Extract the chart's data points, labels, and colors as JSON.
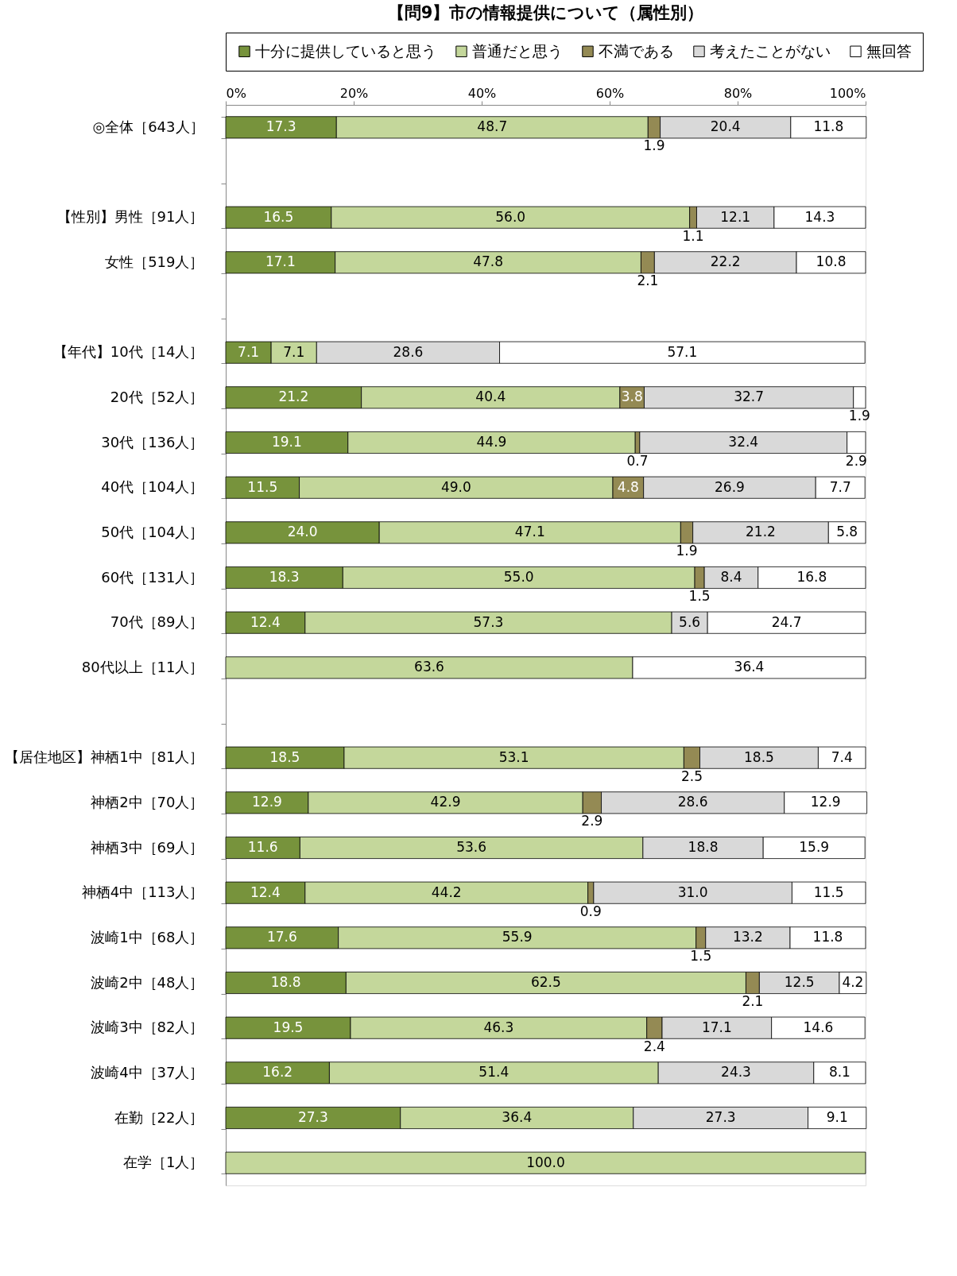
{
  "chart_data": {
    "type": "bar",
    "orientation": "horizontal",
    "stacked": true,
    "title": "【問9】市の情報提供について（属性別）",
    "legend": "top",
    "grid": false,
    "xlim": [
      0,
      100
    ],
    "xticks": [
      {
        "value": 0,
        "label": "0%"
      },
      {
        "value": 20,
        "label": "20%"
      },
      {
        "value": 40,
        "label": "40%"
      },
      {
        "value": 60,
        "label": "60%"
      },
      {
        "value": 80,
        "label": "80%"
      },
      {
        "value": 100,
        "label": "100%"
      }
    ],
    "categories": [
      "◎全体［643人］",
      null,
      "【性別】男性［91人］",
      "女性［519人］",
      null,
      "【年代】10代［14人］",
      "20代［52人］",
      "30代［136人］",
      "40代［104人］",
      "50代［104人］",
      "60代［131人］",
      "70代［89人］",
      "80代以上［11人］",
      null,
      "【居住地区】神栖1中［81人］",
      "神栖2中［70人］",
      "神栖3中［69人］",
      "神栖4中［113人］",
      "波崎1中［68人］",
      "波崎2中［48人］",
      "波崎3中［82人］",
      "波崎4中［37人］",
      "在勤［22人］",
      "在学［1人］"
    ],
    "series": [
      {
        "name": "十分に提供していると思う",
        "color": "#77933c",
        "values": [
          17.3,
          null,
          16.5,
          17.1,
          null,
          7.1,
          21.2,
          19.1,
          11.5,
          24.0,
          18.3,
          12.4,
          null,
          null,
          18.5,
          12.9,
          11.6,
          12.4,
          17.6,
          18.8,
          19.5,
          16.2,
          27.3,
          null
        ],
        "value_labels": [
          "17.3",
          null,
          "16.5",
          "17.1",
          null,
          "7.1",
          "21.2",
          "19.1",
          "11.5",
          "24.0",
          "18.3",
          "12.4",
          null,
          null,
          "18.5",
          "12.9",
          "11.6",
          "12.4",
          "17.6",
          "18.8",
          "19.5",
          "16.2",
          "27.3",
          null
        ]
      },
      {
        "name": "普通だと思う",
        "color": "#c4d79b",
        "values": [
          48.7,
          null,
          56.0,
          47.8,
          null,
          7.1,
          40.4,
          44.9,
          49.0,
          47.1,
          55.0,
          57.3,
          63.6,
          null,
          53.1,
          42.9,
          53.6,
          44.2,
          55.9,
          62.5,
          46.3,
          51.4,
          36.4,
          100.0
        ],
        "value_labels": [
          "48.7",
          null,
          "56.0",
          "47.8",
          null,
          "7.1",
          "40.4",
          "44.9",
          "49.0",
          "47.1",
          "55.0",
          "57.3",
          "63.6",
          null,
          "53.1",
          "42.9",
          "53.6",
          "44.2",
          "55.9",
          "62.5",
          "46.3",
          "51.4",
          "36.4",
          "100.0"
        ]
      },
      {
        "name": "不満である",
        "color": "#948a54",
        "values": [
          1.9,
          null,
          1.1,
          2.1,
          null,
          null,
          3.8,
          0.7,
          4.8,
          1.9,
          1.5,
          null,
          null,
          null,
          2.5,
          2.9,
          null,
          0.9,
          1.5,
          2.1,
          2.4,
          null,
          null,
          null
        ],
        "value_labels": [
          "1.9",
          null,
          "1.1",
          "2.1",
          null,
          null,
          "3.8",
          "0.7",
          "4.8",
          "1.9",
          "1.5",
          null,
          null,
          null,
          "2.5",
          "2.9",
          null,
          "0.9",
          "1.5",
          "2.1",
          "2.4",
          null,
          null,
          null
        ]
      },
      {
        "name": "考えたことがない",
        "color": "#d9d9d9",
        "values": [
          20.4,
          null,
          12.1,
          22.2,
          null,
          28.6,
          32.7,
          32.4,
          26.9,
          21.2,
          8.4,
          5.6,
          null,
          null,
          18.5,
          28.6,
          18.8,
          31.0,
          13.2,
          12.5,
          17.1,
          24.3,
          27.3,
          null
        ],
        "value_labels": [
          "20.4",
          null,
          "12.1",
          "22.2",
          null,
          "28.6",
          "32.7",
          "32.4",
          "26.9",
          "21.2",
          "8.4",
          "5.6",
          null,
          null,
          "18.5",
          "28.6",
          "18.8",
          "31.0",
          "13.2",
          "12.5",
          "17.1",
          "24.3",
          "27.3",
          null
        ]
      },
      {
        "name": "無回答",
        "color": "#ffffff",
        "values": [
          11.8,
          null,
          14.3,
          10.8,
          null,
          57.1,
          1.9,
          2.9,
          7.7,
          5.8,
          16.8,
          24.7,
          36.4,
          null,
          7.4,
          12.9,
          15.9,
          11.5,
          11.8,
          4.2,
          14.6,
          8.1,
          9.1,
          null
        ],
        "value_labels": [
          "11.8",
          null,
          "14.3",
          "10.8",
          null,
          "57.1",
          "1.9",
          "2.9",
          "7.7",
          "5.8",
          "16.8",
          "24.7",
          "36.4",
          null,
          "7.4",
          "12.9",
          "15.9",
          "11.5",
          "11.8",
          "4.2",
          "14.6",
          "8.1",
          "9.1",
          null
        ]
      }
    ]
  }
}
